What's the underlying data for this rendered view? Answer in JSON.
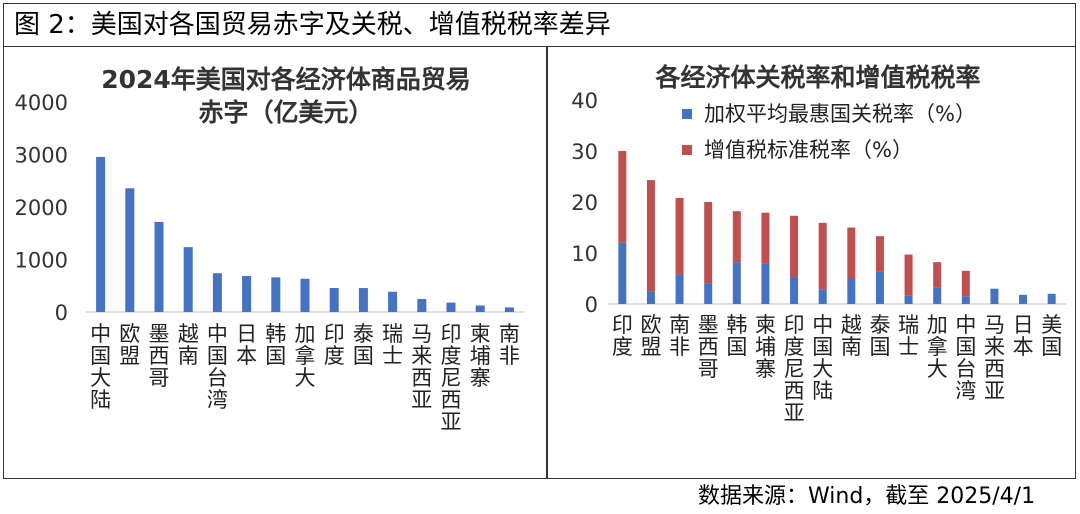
{
  "figure_title": "图 2：美国对各国贸易赤字及关税、增值税税率差异",
  "source_note": "数据来源：Wind，截至 2025/4/1",
  "chart_data": [
    {
      "type": "bar",
      "title_lines": [
        "2024年美国对各经济体商品贸易",
        "赤字（亿美元）"
      ],
      "categories": [
        "中国大陆",
        "欧盟",
        "墨西哥",
        "越南",
        "中国台湾",
        "日本",
        "韩国",
        "加拿大",
        "印度",
        "泰国",
        "瑞士",
        "马来西亚",
        "印度尼西亚",
        "柬埔寨",
        "南非"
      ],
      "values": [
        2954,
        2356,
        1716,
        1235,
        739,
        685,
        660,
        633,
        457,
        456,
        385,
        248,
        179,
        123,
        88
      ],
      "y_ticks": [
        "0",
        "1000",
        "2000",
        "3000",
        "4000"
      ],
      "ylim": [
        0,
        4000
      ],
      "bar_color": "#4472C4",
      "grid": false
    },
    {
      "type": "bar",
      "stacked": true,
      "title": "各经济体关税率和增值税税率",
      "categories": [
        "印度",
        "欧盟",
        "南非",
        "墨西哥",
        "韩国",
        "柬埔寨",
        "印度尼西亚",
        "中国大陆",
        "越南",
        "泰国",
        "瑞士",
        "加拿大",
        "中国台湾",
        "马来西亚",
        "日本",
        "美国"
      ],
      "series": [
        {
          "name": "加权平均最惠国关税率（%）",
          "color": "#4472C4",
          "values": [
            12.0,
            2.5,
            5.8,
            4.0,
            8.2,
            7.9,
            5.3,
            2.9,
            5.0,
            6.3,
            1.6,
            3.2,
            1.5,
            3.0,
            1.8,
            2.0
          ]
        },
        {
          "name": "增值税标准税率（%）",
          "color": "#C0504D",
          "values": [
            18.0,
            21.8,
            15.0,
            16.0,
            10.0,
            10.0,
            12.0,
            13.0,
            10.0,
            7.0,
            8.1,
            5.0,
            5.0,
            0,
            0,
            0
          ]
        }
      ],
      "y_ticks": [
        "0",
        "10",
        "20",
        "30",
        "40"
      ],
      "ylim": [
        0,
        40
      ],
      "legend_position": "top-center",
      "grid": false
    }
  ]
}
